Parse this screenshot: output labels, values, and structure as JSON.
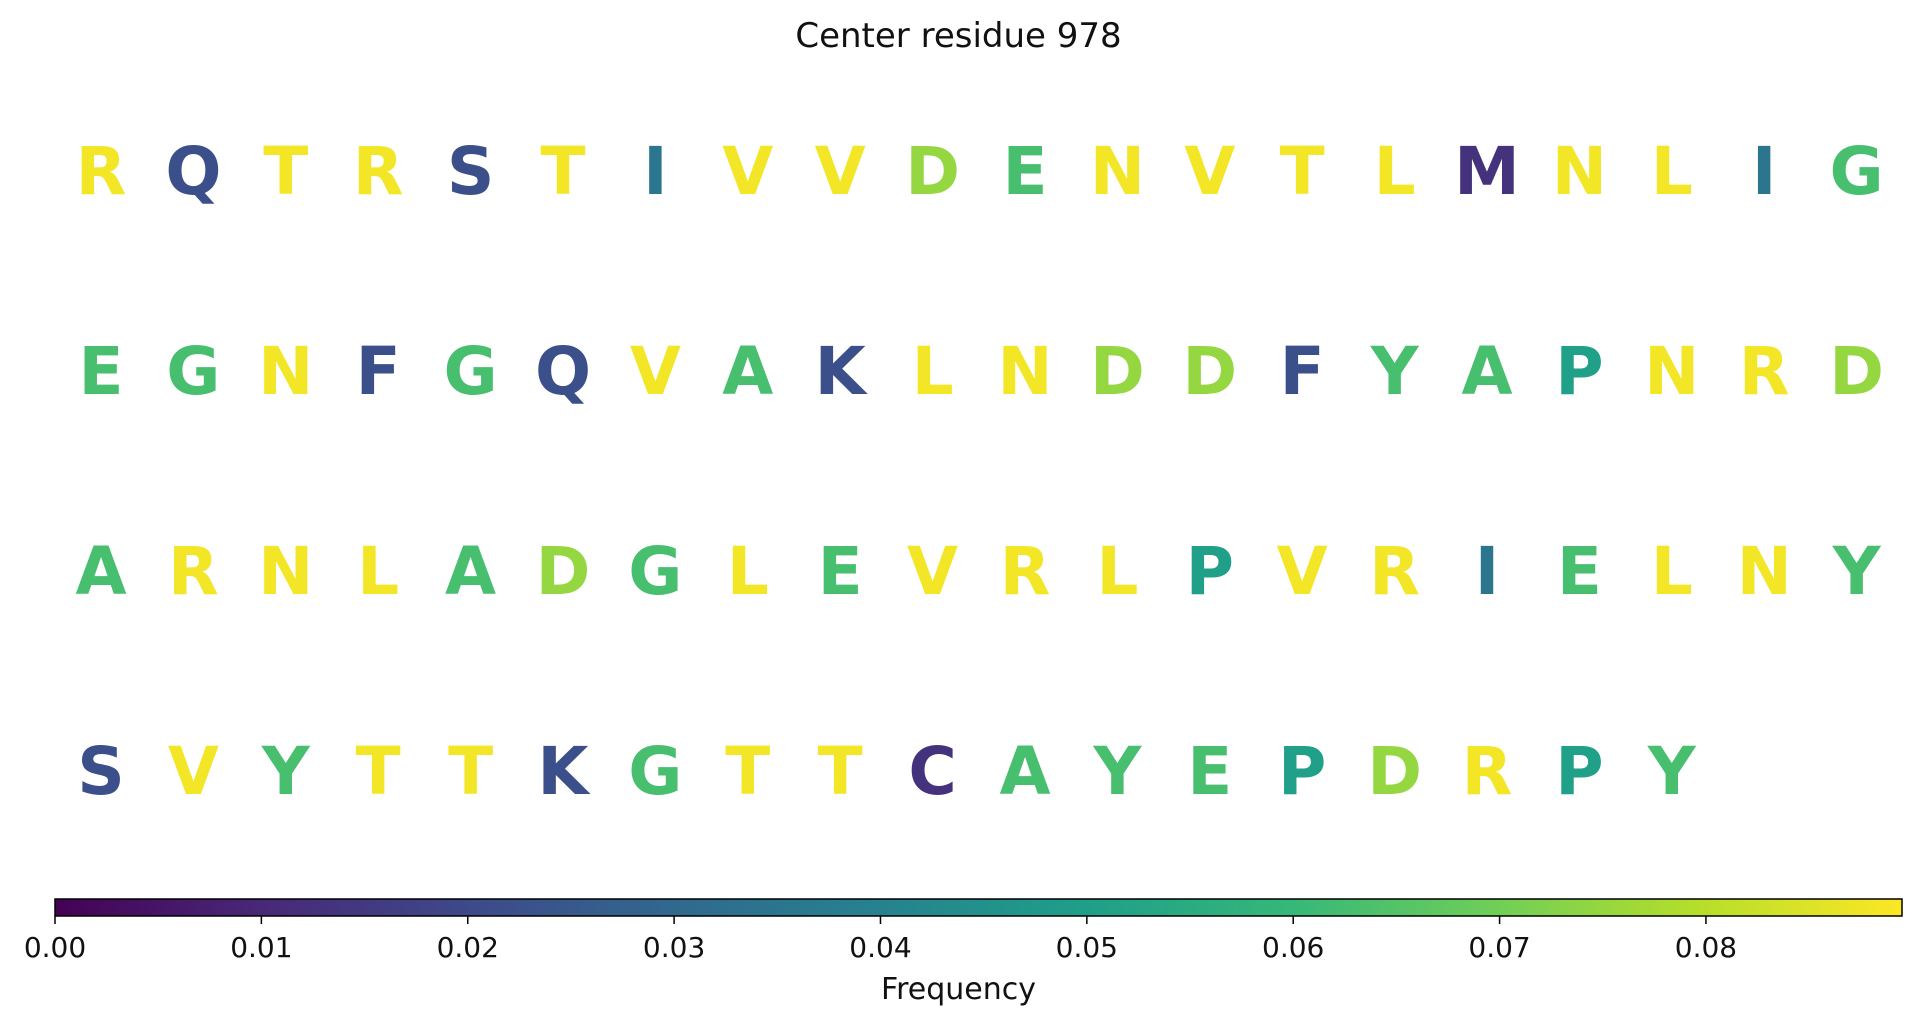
{
  "title": "Center residue 978",
  "chart_data": {
    "type": "heatmap",
    "title": "Center residue 978",
    "rows": [
      {
        "letters": [
          "R",
          "Q",
          "T",
          "R",
          "S",
          "T",
          "I",
          "V",
          "V",
          "D",
          "E",
          "N",
          "V",
          "T",
          "L",
          "M",
          "N",
          "L",
          "I",
          "G"
        ],
        "values": [
          0.088,
          0.022,
          0.088,
          0.088,
          0.022,
          0.088,
          0.035,
          0.088,
          0.088,
          0.075,
          0.063,
          0.088,
          0.088,
          0.088,
          0.088,
          0.013,
          0.088,
          0.088,
          0.035,
          0.063
        ]
      },
      {
        "letters": [
          "E",
          "G",
          "N",
          "F",
          "G",
          "Q",
          "V",
          "A",
          "K",
          "L",
          "N",
          "D",
          "D",
          "F",
          "Y",
          "A",
          "P",
          "N",
          "R",
          "D"
        ],
        "values": [
          0.063,
          0.063,
          0.088,
          0.022,
          0.063,
          0.022,
          0.088,
          0.063,
          0.022,
          0.088,
          0.088,
          0.075,
          0.075,
          0.022,
          0.063,
          0.063,
          0.05,
          0.088,
          0.088,
          0.075
        ]
      },
      {
        "letters": [
          "A",
          "R",
          "N",
          "L",
          "A",
          "D",
          "G",
          "L",
          "E",
          "V",
          "R",
          "L",
          "P",
          "V",
          "R",
          "I",
          "E",
          "L",
          "N",
          "Y"
        ],
        "values": [
          0.063,
          0.088,
          0.088,
          0.088,
          0.063,
          0.075,
          0.063,
          0.088,
          0.063,
          0.088,
          0.088,
          0.088,
          0.05,
          0.088,
          0.088,
          0.035,
          0.063,
          0.088,
          0.088,
          0.063
        ]
      },
      {
        "letters": [
          "S",
          "V",
          "Y",
          "T",
          "T",
          "K",
          "G",
          "T",
          "T",
          "C",
          "A",
          "Y",
          "E",
          "P",
          "D",
          "R",
          "P",
          "Y"
        ],
        "values": [
          0.022,
          0.088,
          0.063,
          0.088,
          0.088,
          0.022,
          0.063,
          0.088,
          0.088,
          0.013,
          0.063,
          0.063,
          0.063,
          0.05,
          0.075,
          0.088,
          0.05,
          0.063
        ]
      }
    ],
    "colorbar": {
      "label": "Frequency",
      "min": 0.0,
      "max": 0.0895,
      "ticks": [
        0.0,
        0.01,
        0.02,
        0.03,
        0.04,
        0.05,
        0.06,
        0.07,
        0.08
      ],
      "tick_labels": [
        "0.00",
        "0.01",
        "0.02",
        "0.03",
        "0.04",
        "0.05",
        "0.06",
        "0.07",
        "0.08"
      ],
      "colormap": "viridis",
      "placement": "bottom"
    },
    "xlabel": "Frequency"
  },
  "colors": {
    "viridis": [
      "#440154",
      "#482878",
      "#3e4989",
      "#31688e",
      "#26828e",
      "#1f9e89",
      "#35b779",
      "#6ece58",
      "#b5de2b",
      "#fde725"
    ]
  }
}
